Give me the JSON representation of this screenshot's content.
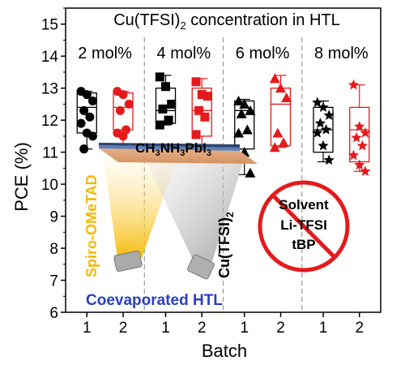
{
  "chart_data": {
    "type": "box",
    "title": "Cu(TFSI)",
    "title_sub": "2",
    "title_rest": " concentration in HTL",
    "ylabel": "PCE (%)",
    "xlabel": "Batch",
    "ylim": [
      6,
      15.5
    ],
    "yticks": [
      6,
      7,
      8,
      9,
      10,
      11,
      12,
      13,
      14,
      15
    ],
    "groups": [
      {
        "label": "2 mol%",
        "marker": "circle",
        "batches": [
          {
            "batch": "1",
            "color": "#000000",
            "min": 11.1,
            "q1": 11.6,
            "median": 12.4,
            "q3": 12.85,
            "max": 12.9,
            "points": [
              12.9,
              12.8,
              12.6,
              12.3,
              12.1,
              11.9,
              11.6,
              11.5,
              11.1
            ]
          },
          {
            "batch": "2",
            "color": "#e41a1c",
            "min": 11.05,
            "q1": 11.7,
            "median": 12.4,
            "q3": 12.85,
            "max": 12.9,
            "points": [
              12.9,
              12.8,
              12.5,
              12.3,
              11.7,
              11.6,
              11.5,
              11.05
            ]
          }
        ]
      },
      {
        "label": "4 mol%",
        "marker": "square",
        "batches": [
          {
            "batch": "1",
            "color": "#000000",
            "min": 11.85,
            "q1": 11.9,
            "median": 12.3,
            "q3": 13.0,
            "max": 13.4,
            "points": [
              13.35,
              13.05,
              12.5,
              12.35,
              12.0,
              11.85
            ]
          },
          {
            "batch": "2",
            "color": "#e41a1c",
            "min": 11.0,
            "q1": 11.5,
            "median": 12.3,
            "q3": 13.0,
            "max": 13.3,
            "points": [
              13.2,
              12.8,
              12.75,
              12.3,
              12.1,
              11.55,
              11.0
            ]
          }
        ]
      },
      {
        "label": "6 mol%",
        "marker": "triangle",
        "batches": [
          {
            "batch": "1",
            "color": "#000000",
            "min": 10.3,
            "q1": 11.1,
            "median": 12.3,
            "q3": 12.6,
            "max": 12.65,
            "points": [
              12.6,
              12.5,
              12.3,
              12.2,
              11.7,
              11.6,
              11.0,
              10.35
            ]
          },
          {
            "batch": "2",
            "color": "#e41a1c",
            "min": 11.15,
            "q1": 11.2,
            "median": 12.5,
            "q3": 13.0,
            "max": 13.4,
            "points": [
              13.3,
              13.0,
              12.7,
              11.6,
              11.3,
              11.15
            ]
          }
        ]
      },
      {
        "label": "8 mol%",
        "marker": "star",
        "batches": [
          {
            "batch": "1",
            "color": "#000000",
            "min": 10.7,
            "q1": 11.0,
            "median": 11.7,
            "q3": 12.4,
            "max": 12.6,
            "points": [
              12.55,
              12.4,
              12.15,
              11.9,
              11.7,
              11.6,
              11.2,
              10.75
            ]
          },
          {
            "batch": "2",
            "color": "#e41a1c",
            "min": 10.4,
            "q1": 10.7,
            "median": 11.7,
            "q3": 12.4,
            "max": 13.1,
            "points": [
              13.1,
              11.8,
              11.6,
              11.45,
              11.2,
              10.9,
              10.6,
              10.4
            ]
          }
        ]
      }
    ]
  },
  "inset": {
    "layer_label": "CH",
    "layer_sub1": "3",
    "layer_mid": "NH",
    "layer_sub2": "3",
    "layer_rest": "PbI",
    "layer_sub3": "3",
    "spiro_label": "Spiro-OMeTAD",
    "cu_label": "Cu(TFSI)",
    "cu_sub": "2",
    "coevap_label": "Coevaporated HTL",
    "no_list": [
      "Solvent",
      "Li-TFSI",
      "tBP"
    ],
    "colors": {
      "spiro": "#f5b800",
      "coevap": "#2a3fbf",
      "no_sign": "#e41a1c"
    }
  }
}
